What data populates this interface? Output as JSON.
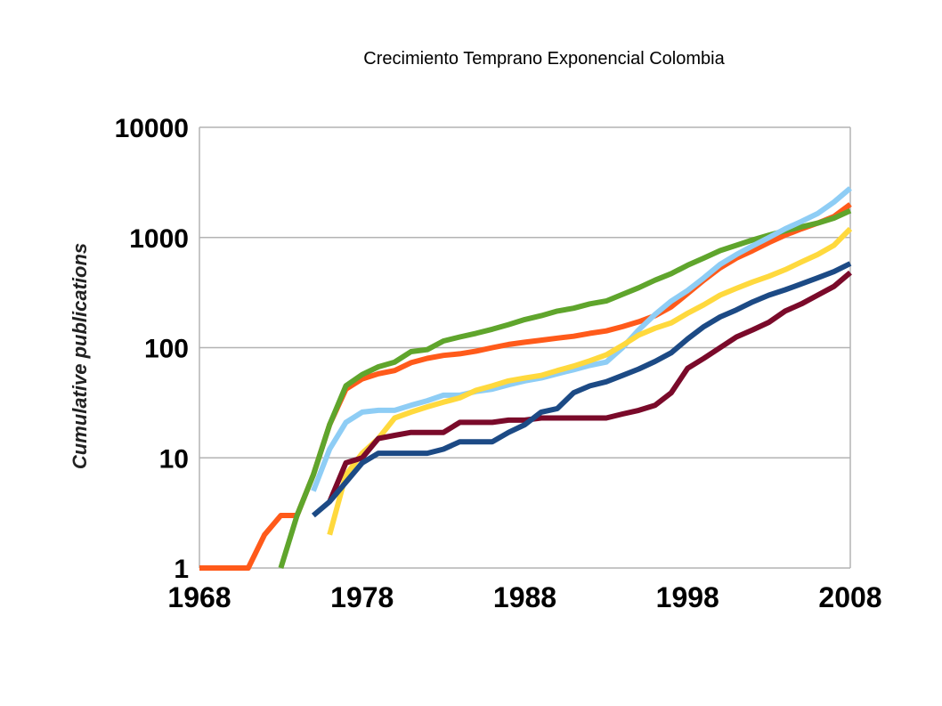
{
  "chart_data": {
    "type": "line",
    "title": "Crecimiento Temprano Exponencial Colombia",
    "xlabel": "",
    "ylabel": "Cumulative publications",
    "xlim": [
      1968,
      2008
    ],
    "ylim": [
      1,
      10000
    ],
    "yscale": "log",
    "grid": "horizontal",
    "x_ticks": [
      "1968",
      "1978",
      "1988",
      "1998",
      "2008"
    ],
    "y_ticks": [
      "1",
      "10",
      "100",
      "1000",
      "10000"
    ],
    "series": [
      {
        "color": "#ff5a1a",
        "points": [
          [
            1968,
            1
          ],
          [
            1969,
            1
          ],
          [
            1970,
            1
          ],
          [
            1971,
            1
          ],
          [
            1972,
            2
          ],
          [
            1973,
            3
          ],
          [
            1974,
            3
          ],
          [
            1975,
            7
          ],
          [
            1976,
            20
          ],
          [
            1977,
            42
          ],
          [
            1978,
            52
          ],
          [
            1979,
            58
          ],
          [
            1980,
            62
          ],
          [
            1981,
            73
          ],
          [
            1982,
            80
          ],
          [
            1983,
            85
          ],
          [
            1984,
            88
          ],
          [
            1985,
            93
          ],
          [
            1986,
            100
          ],
          [
            1987,
            107
          ],
          [
            1988,
            112
          ],
          [
            1989,
            117
          ],
          [
            1990,
            122
          ],
          [
            1991,
            127
          ],
          [
            1992,
            135
          ],
          [
            1993,
            142
          ],
          [
            1994,
            155
          ],
          [
            1995,
            172
          ],
          [
            1996,
            195
          ],
          [
            1997,
            235
          ],
          [
            1998,
            310
          ],
          [
            1999,
            410
          ],
          [
            2000,
            530
          ],
          [
            2001,
            650
          ],
          [
            2002,
            760
          ],
          [
            2003,
            900
          ],
          [
            2004,
            1050
          ],
          [
            2005,
            1200
          ],
          [
            2006,
            1350
          ],
          [
            2007,
            1550
          ],
          [
            2008,
            2000
          ]
        ]
      },
      {
        "color": "#5fa52c",
        "points": [
          [
            1973,
            1
          ],
          [
            1974,
            3
          ],
          [
            1975,
            7
          ],
          [
            1976,
            20
          ],
          [
            1977,
            45
          ],
          [
            1978,
            57
          ],
          [
            1979,
            67
          ],
          [
            1980,
            74
          ],
          [
            1981,
            92
          ],
          [
            1982,
            96
          ],
          [
            1983,
            115
          ],
          [
            1984,
            125
          ],
          [
            1985,
            135
          ],
          [
            1986,
            147
          ],
          [
            1987,
            162
          ],
          [
            1988,
            180
          ],
          [
            1989,
            195
          ],
          [
            1990,
            215
          ],
          [
            1991,
            228
          ],
          [
            1992,
            250
          ],
          [
            1993,
            265
          ],
          [
            1994,
            305
          ],
          [
            1995,
            350
          ],
          [
            1996,
            410
          ],
          [
            1997,
            470
          ],
          [
            1998,
            560
          ],
          [
            1999,
            650
          ],
          [
            2000,
            760
          ],
          [
            2001,
            850
          ],
          [
            2002,
            950
          ],
          [
            2003,
            1050
          ],
          [
            2004,
            1150
          ],
          [
            2005,
            1250
          ],
          [
            2006,
            1350
          ],
          [
            2007,
            1500
          ],
          [
            2008,
            1750
          ]
        ]
      },
      {
        "color": "#8ecdf5",
        "points": [
          [
            1975,
            5
          ],
          [
            1976,
            12
          ],
          [
            1977,
            21
          ],
          [
            1978,
            26
          ],
          [
            1979,
            27
          ],
          [
            1980,
            27
          ],
          [
            1981,
            30
          ],
          [
            1982,
            33
          ],
          [
            1983,
            37
          ],
          [
            1984,
            37
          ],
          [
            1985,
            40
          ],
          [
            1986,
            42
          ],
          [
            1987,
            46
          ],
          [
            1988,
            50
          ],
          [
            1989,
            53
          ],
          [
            1990,
            58
          ],
          [
            1991,
            63
          ],
          [
            1992,
            69
          ],
          [
            1993,
            74
          ],
          [
            1994,
            100
          ],
          [
            1995,
            145
          ],
          [
            1996,
            200
          ],
          [
            1997,
            265
          ],
          [
            1998,
            330
          ],
          [
            1999,
            430
          ],
          [
            2000,
            570
          ],
          [
            2001,
            700
          ],
          [
            2002,
            840
          ],
          [
            2003,
            1000
          ],
          [
            2004,
            1200
          ],
          [
            2005,
            1400
          ],
          [
            2006,
            1650
          ],
          [
            2007,
            2100
          ],
          [
            2008,
            2800
          ]
        ]
      },
      {
        "color": "#ffd93d",
        "points": [
          [
            1976,
            2
          ],
          [
            1977,
            7
          ],
          [
            1978,
            11
          ],
          [
            1979,
            15
          ],
          [
            1980,
            23
          ],
          [
            1981,
            26
          ],
          [
            1982,
            29
          ],
          [
            1983,
            32
          ],
          [
            1984,
            35
          ],
          [
            1985,
            41
          ],
          [
            1986,
            45
          ],
          [
            1987,
            50
          ],
          [
            1988,
            53
          ],
          [
            1989,
            56
          ],
          [
            1990,
            62
          ],
          [
            1991,
            68
          ],
          [
            1992,
            76
          ],
          [
            1993,
            86
          ],
          [
            1994,
            105
          ],
          [
            1995,
            130
          ],
          [
            1996,
            150
          ],
          [
            1997,
            168
          ],
          [
            1998,
            205
          ],
          [
            1999,
            245
          ],
          [
            2000,
            300
          ],
          [
            2001,
            345
          ],
          [
            2002,
            395
          ],
          [
            2003,
            445
          ],
          [
            2004,
            510
          ],
          [
            2005,
            600
          ],
          [
            2006,
            700
          ],
          [
            2007,
            850
          ],
          [
            2008,
            1200
          ]
        ]
      },
      {
        "color": "#7a0a2a",
        "points": [
          [
            1976,
            4
          ],
          [
            1977,
            9
          ],
          [
            1978,
            10
          ],
          [
            1979,
            15
          ],
          [
            1980,
            16
          ],
          [
            1981,
            17
          ],
          [
            1982,
            17
          ],
          [
            1983,
            17
          ],
          [
            1984,
            21
          ],
          [
            1985,
            21
          ],
          [
            1986,
            21
          ],
          [
            1987,
            22
          ],
          [
            1988,
            22
          ],
          [
            1989,
            23
          ],
          [
            1990,
            23
          ],
          [
            1991,
            23
          ],
          [
            1992,
            23
          ],
          [
            1993,
            23
          ],
          [
            1994,
            25
          ],
          [
            1995,
            27
          ],
          [
            1996,
            30
          ],
          [
            1997,
            39
          ],
          [
            1998,
            65
          ],
          [
            1999,
            80
          ],
          [
            2000,
            100
          ],
          [
            2001,
            125
          ],
          [
            2002,
            145
          ],
          [
            2003,
            170
          ],
          [
            2004,
            215
          ],
          [
            2005,
            250
          ],
          [
            2006,
            300
          ],
          [
            2007,
            360
          ],
          [
            2008,
            480
          ]
        ]
      },
      {
        "color": "#1c4a85",
        "points": [
          [
            1975,
            3
          ],
          [
            1976,
            4
          ],
          [
            1977,
            6
          ],
          [
            1978,
            9
          ],
          [
            1979,
            11
          ],
          [
            1980,
            11
          ],
          [
            1981,
            11
          ],
          [
            1982,
            11
          ],
          [
            1983,
            12
          ],
          [
            1984,
            14
          ],
          [
            1985,
            14
          ],
          [
            1986,
            14
          ],
          [
            1987,
            17
          ],
          [
            1988,
            20
          ],
          [
            1989,
            26
          ],
          [
            1990,
            28
          ],
          [
            1991,
            39
          ],
          [
            1992,
            45
          ],
          [
            1993,
            49
          ],
          [
            1994,
            56
          ],
          [
            1995,
            64
          ],
          [
            1996,
            75
          ],
          [
            1997,
            90
          ],
          [
            1998,
            120
          ],
          [
            1999,
            155
          ],
          [
            2000,
            190
          ],
          [
            2001,
            220
          ],
          [
            2002,
            260
          ],
          [
            2003,
            300
          ],
          [
            2004,
            335
          ],
          [
            2005,
            380
          ],
          [
            2006,
            430
          ],
          [
            2007,
            490
          ],
          [
            2008,
            580
          ]
        ]
      }
    ]
  }
}
